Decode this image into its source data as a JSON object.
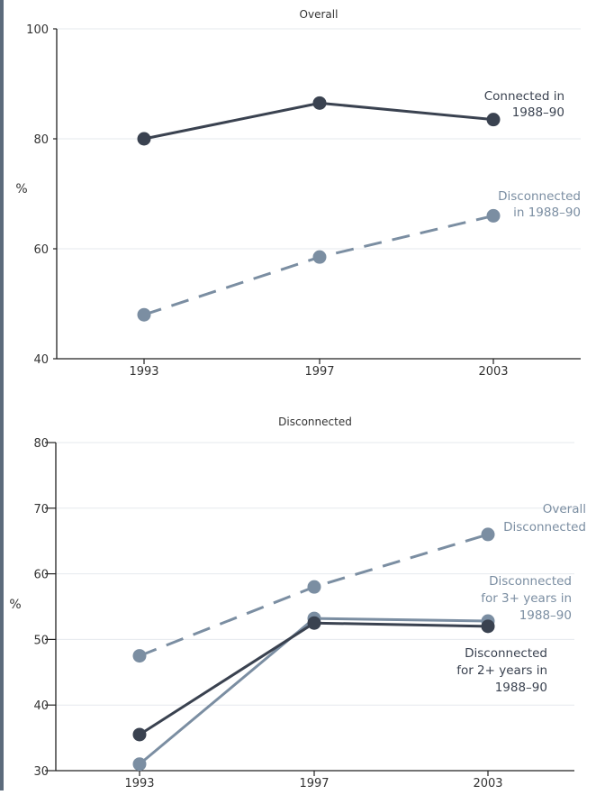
{
  "chart_data": [
    {
      "type": "line",
      "title": "Overall",
      "ylabel": "%",
      "xlabel": "",
      "categories": [
        "1993",
        "1997",
        "2003"
      ],
      "ylim": [
        40,
        100
      ],
      "yticks": [
        40,
        60,
        80,
        100
      ],
      "grid": true,
      "series": [
        {
          "name_lines": [
            "Connected in",
            "1988–90"
          ],
          "values": [
            80,
            86.5,
            83.5
          ],
          "color": "#3a4250",
          "style": "solid"
        },
        {
          "name_lines": [
            "Disconnected",
            "in 1988–90"
          ],
          "values": [
            48,
            58.5,
            66
          ],
          "color": "#7b8ea2",
          "style": "dashed"
        }
      ]
    },
    {
      "type": "line",
      "title": "Disconnected",
      "ylabel": "%",
      "xlabel": "",
      "categories": [
        "1993",
        "1997",
        "2003"
      ],
      "ylim": [
        30,
        80
      ],
      "yticks": [
        30,
        40,
        50,
        60,
        70,
        80
      ],
      "grid": true,
      "series": [
        {
          "name_lines": [
            "Overall",
            "Disconnected"
          ],
          "values": [
            47.5,
            58,
            66
          ],
          "color": "#7b8ea2",
          "style": "dashed"
        },
        {
          "name_lines": [
            "Disconnected",
            "for 3+ years in",
            "1988–90"
          ],
          "values": [
            31,
            53.2,
            52.8
          ],
          "color": "#7b8ea2",
          "style": "solid"
        },
        {
          "name_lines": [
            "Disconnected",
            "for 2+ years in",
            "1988–90"
          ],
          "values": [
            35.5,
            52.5,
            52
          ],
          "color": "#3a4250",
          "style": "solid"
        }
      ]
    }
  ]
}
